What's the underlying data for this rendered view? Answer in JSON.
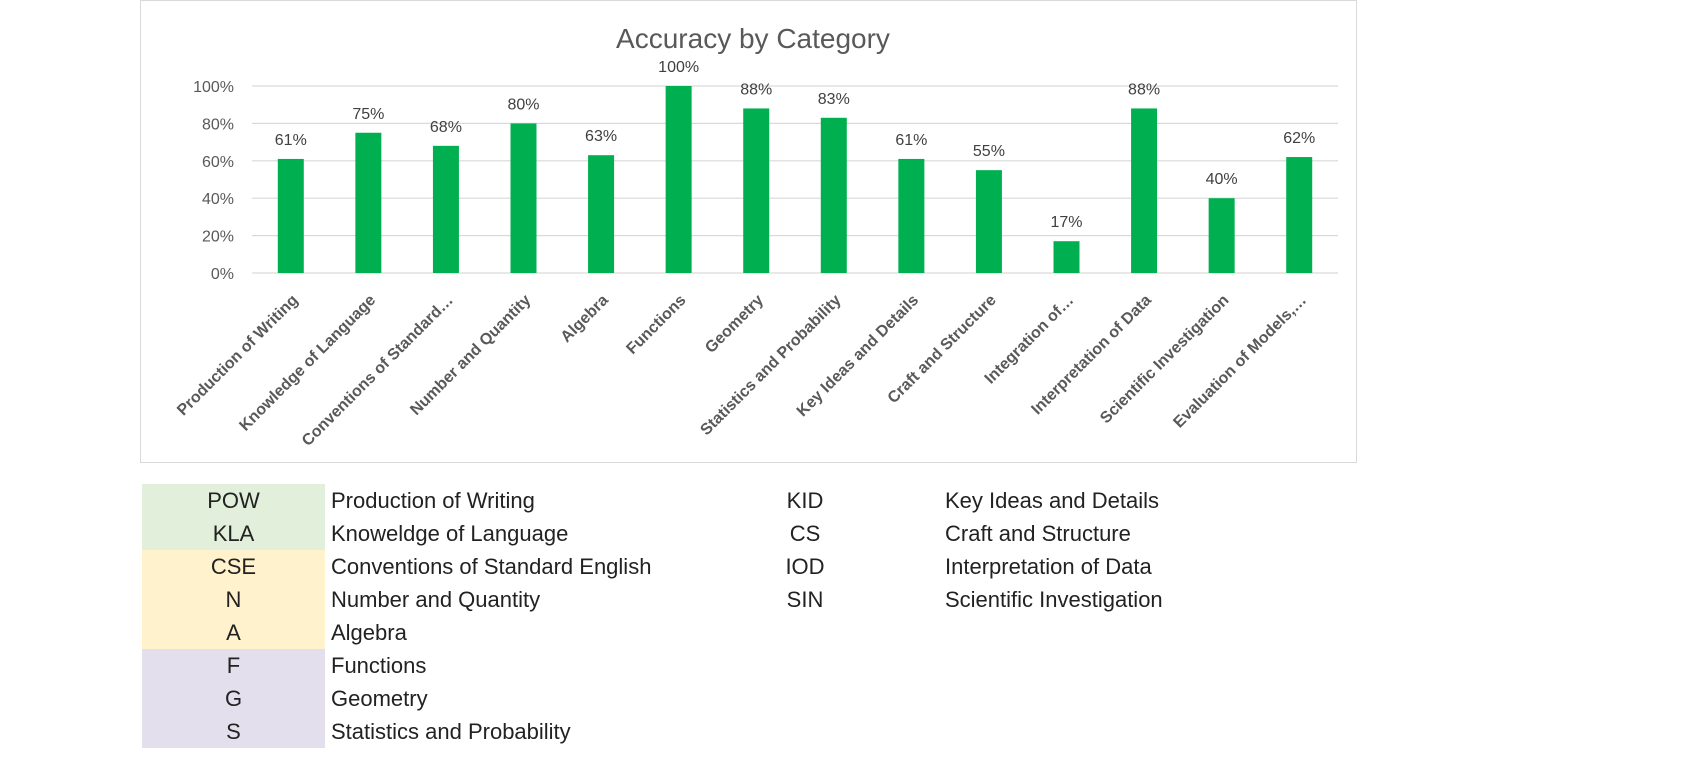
{
  "chart_data": {
    "type": "bar",
    "title": "Accuracy by Category",
    "xlabel": "",
    "ylabel": "",
    "ylim": [
      0,
      100
    ],
    "yticks": [
      "0%",
      "20%",
      "40%",
      "60%",
      "80%",
      "100%"
    ],
    "grid": true,
    "bar_color": "#00b050",
    "categories": [
      "Production of Writing",
      "Knowledge of Language",
      "Conventions of Standard…",
      "Number and Quantity",
      "Algebra",
      "Functions",
      "Geometry",
      "Statistics and Probability",
      "Key Ideas and Details",
      "Craft and Structure",
      "Integration of…",
      "Interpretation of Data",
      "Scientific Investigation",
      "Evaluation of Models,…"
    ],
    "values": [
      61,
      75,
      68,
      80,
      63,
      100,
      88,
      83,
      61,
      55,
      17,
      88,
      40,
      62
    ],
    "data_labels": [
      "61%",
      "75%",
      "68%",
      "80%",
      "63%",
      "100%",
      "88%",
      "83%",
      "61%",
      "55%",
      "17%",
      "88%",
      "40%",
      "62%"
    ]
  },
  "legend_left": [
    {
      "abbr": "POW",
      "full": "Production of Writing",
      "color": "#e2efda"
    },
    {
      "abbr": "KLA",
      "full": "Knoweldge of Language",
      "color": "#e2efda"
    },
    {
      "abbr": "CSE",
      "full": "Conventions of Standard English",
      "color": "#fff2cc"
    },
    {
      "abbr": "N",
      "full": "Number and Quantity",
      "color": "#fff2cc"
    },
    {
      "abbr": "A",
      "full": "Algebra",
      "color": "#fff2cc"
    },
    {
      "abbr": "F",
      "full": "Functions",
      "color": "#e4dfec"
    },
    {
      "abbr": "G",
      "full": "Geometry",
      "color": "#e4dfec"
    },
    {
      "abbr": "S",
      "full": "Statistics and Probability",
      "color": "#e4dfec"
    }
  ],
  "legend_right": [
    {
      "abbr": "KID",
      "full": "Key Ideas and Details"
    },
    {
      "abbr": "CS",
      "full": "Craft and Structure"
    },
    {
      "abbr": "IOD",
      "full": "Interpretation of Data"
    },
    {
      "abbr": "SIN",
      "full": "Scientific Investigation"
    }
  ]
}
